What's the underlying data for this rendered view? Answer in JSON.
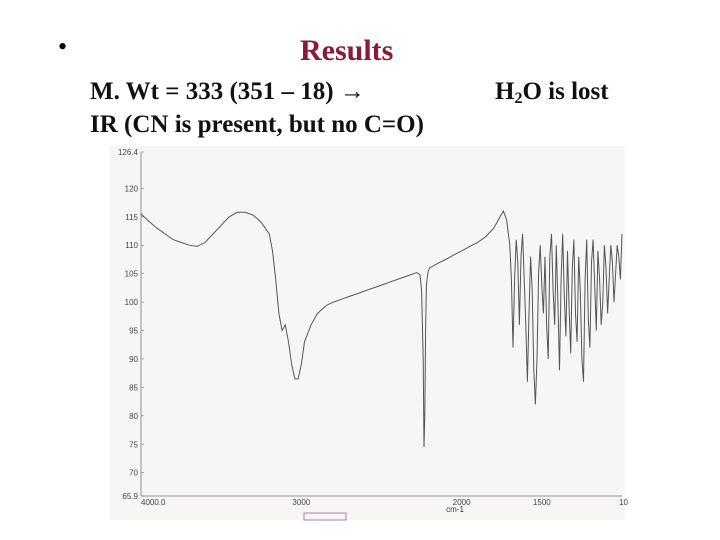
{
  "slide": {
    "bullet": "•",
    "title": "Results",
    "line1": "M. Wt = 333   (351 – 18)    →",
    "line2": "IR (CN is present,  but no C=O)",
    "h2o_h": "H",
    "h2o_sub": "2",
    "h2o_rest": "O is lost"
  },
  "chart_data": {
    "type": "line",
    "title": "",
    "xlabel": "cm-1",
    "ylabel": "",
    "xlim": [
      4000,
      1000
    ],
    "ylim": [
      65.9,
      126.4
    ],
    "x_ticks": [
      "4000.0",
      "3000",
      "2000",
      "1500",
      "10"
    ],
    "y_ticks": [
      "126.4",
      "120",
      "115",
      "110",
      "105",
      "100",
      "95",
      "90",
      "85",
      "80",
      "75",
      "70",
      "65.9"
    ],
    "grid": false,
    "series": [
      {
        "x": [
          4000,
          3950,
          3900,
          3850,
          3800,
          3750,
          3700,
          3650,
          3600,
          3550,
          3500,
          3450,
          3400,
          3350,
          3300,
          3250,
          3200,
          3180,
          3160,
          3140,
          3120,
          3100,
          3080,
          3060,
          3040,
          3020,
          3000,
          2980,
          2960,
          2940,
          2920,
          2900,
          2880,
          2860,
          2840,
          2800,
          2750,
          2700,
          2650,
          2600,
          2550,
          2500,
          2450,
          2400,
          2350,
          2300,
          2280,
          2260,
          2250,
          2240,
          2235,
          2230,
          2225,
          2220,
          2210,
          2200,
          2150,
          2100,
          2050,
          2000,
          1950,
          1900,
          1850,
          1800,
          1780,
          1760,
          1740,
          1720,
          1700,
          1690,
          1680,
          1670,
          1660,
          1650,
          1640,
          1630,
          1620,
          1610,
          1600,
          1590,
          1580,
          1570,
          1560,
          1550,
          1540,
          1530,
          1520,
          1510,
          1500,
          1490,
          1480,
          1470,
          1460,
          1450,
          1440,
          1430,
          1420,
          1410,
          1400,
          1390,
          1380,
          1370,
          1360,
          1350,
          1340,
          1330,
          1320,
          1310,
          1300,
          1290,
          1280,
          1270,
          1260,
          1250,
          1240,
          1230,
          1220,
          1210,
          1200,
          1190,
          1180,
          1170,
          1160,
          1150,
          1140,
          1130,
          1120,
          1110,
          1100,
          1090,
          1080,
          1070,
          1060,
          1050,
          1040,
          1030,
          1020,
          1010,
          1000
        ],
        "y": [
          115.5,
          114.2,
          113.0,
          112.0,
          111.0,
          110.5,
          110.0,
          109.8,
          110.5,
          112.0,
          113.5,
          115.0,
          115.8,
          115.8,
          115.3,
          114.0,
          112.0,
          109.0,
          104.0,
          98.0,
          95.0,
          96.0,
          93.0,
          89.0,
          86.5,
          86.5,
          89.0,
          93.0,
          94.5,
          96.0,
          97.0,
          98.0,
          98.5,
          99.0,
          99.5,
          100.0,
          100.5,
          101.0,
          101.5,
          102.0,
          102.5,
          103.0,
          103.5,
          104.0,
          104.5,
          105.0,
          105.2,
          104.8,
          102.0,
          90.0,
          74.5,
          80.0,
          95.0,
          103.0,
          105.3,
          106.0,
          106.8,
          107.5,
          108.3,
          109.0,
          109.8,
          110.5,
          111.5,
          113.0,
          114.0,
          115.0,
          116.0,
          114.5,
          110.0,
          104.0,
          92.0,
          104.0,
          111.0,
          107.0,
          96.0,
          108.0,
          112.0,
          104.0,
          96.0,
          86.0,
          98.0,
          108.0,
          102.0,
          88.0,
          82.0,
          90.0,
          105.0,
          110.0,
          103.0,
          98.0,
          108.0,
          96.0,
          90.0,
          108.0,
          112.0,
          102.0,
          96.0,
          110.0,
          100.0,
          88.0,
          104.0,
          112.0,
          101.0,
          94.0,
          109.0,
          99.0,
          91.0,
          106.0,
          111.0,
          98.0,
          93.0,
          108.0,
          102.0,
          90.0,
          86.0,
          104.0,
          111.0,
          97.0,
          92.0,
          107.0,
          111.0,
          103.0,
          95.0,
          109.0,
          104.0,
          96.0,
          100.0,
          110.0,
          106.0,
          98.0,
          104.0,
          110.0,
          107.0,
          100.0,
          105.0,
          110.0,
          108.0,
          104.0,
          112.0
        ]
      }
    ]
  }
}
